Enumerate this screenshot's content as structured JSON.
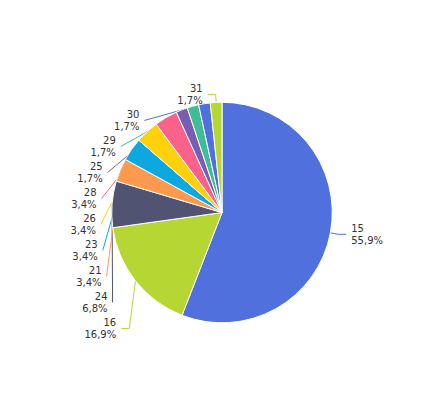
{
  "chart_data": {
    "type": "pie",
    "categories": [
      "15",
      "16",
      "24",
      "21",
      "23",
      "26",
      "28",
      "25",
      "29",
      "30",
      "31"
    ],
    "values": [
      55.9,
      16.9,
      6.8,
      3.4,
      3.4,
      3.4,
      3.4,
      1.7,
      1.7,
      1.7,
      1.7
    ],
    "value_labels": [
      "55,9%",
      "16,9%",
      "6,8%",
      "3,4%",
      "3,4%",
      "3,4%",
      "3,4%",
      "1,7%",
      "1,7%",
      "1,7%",
      "1,7%"
    ],
    "data_labels": true
  }
}
